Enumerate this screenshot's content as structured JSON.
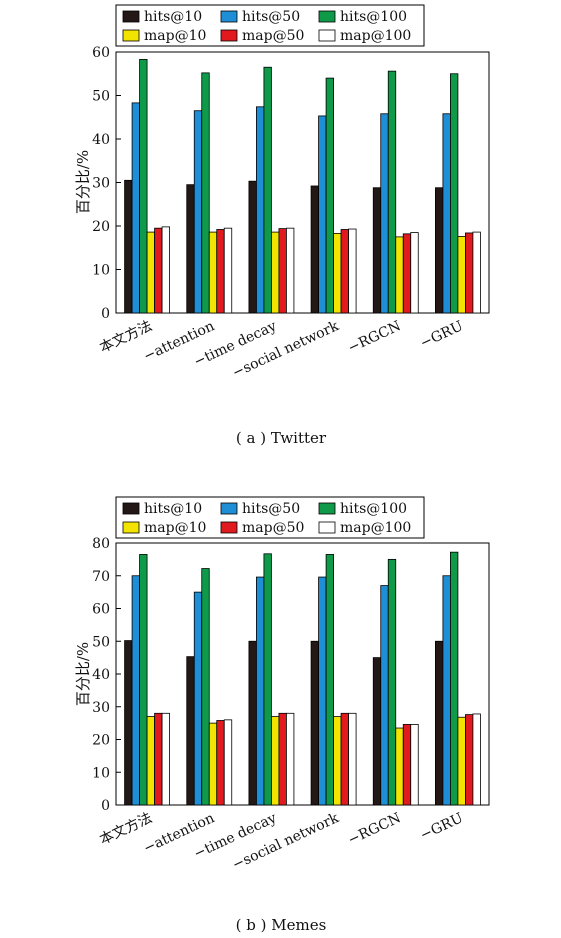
{
  "series_style": [
    {
      "name": "hits@10",
      "color": "#231815"
    },
    {
      "name": "hits@50",
      "color": "#1e8fd6"
    },
    {
      "name": "hits@100",
      "color": "#0f9a4a"
    },
    {
      "name": "map@10",
      "color": "#f2e400"
    },
    {
      "name": "map@50",
      "color": "#e01a1f"
    },
    {
      "name": "map@100",
      "color": "#ffffff"
    }
  ],
  "chart_data": [
    {
      "type": "bar",
      "caption": "( a ) Twitter",
      "ylabel": "百分比/%",
      "xlabel": "",
      "ylim": [
        0,
        60
      ],
      "yticks": [
        "0",
        "10",
        "20",
        "30",
        "40",
        "50",
        "60"
      ],
      "grid": false,
      "legend_position": "top",
      "categories": [
        "本文方法",
        "−attention",
        "−time decay",
        "−social network",
        "−RGCN",
        "−GRU"
      ],
      "series": [
        {
          "name": "hits@10",
          "values": [
            30.5,
            29.5,
            30.3,
            29.2,
            28.8,
            28.8
          ]
        },
        {
          "name": "hits@50",
          "values": [
            48.3,
            46.5,
            47.4,
            45.3,
            45.8,
            45.8
          ]
        },
        {
          "name": "hits@100",
          "values": [
            58.3,
            55.2,
            56.5,
            54.0,
            55.6,
            55.0
          ]
        },
        {
          "name": "map@10",
          "values": [
            18.6,
            18.6,
            18.6,
            18.3,
            17.5,
            17.6
          ]
        },
        {
          "name": "map@50",
          "values": [
            19.5,
            19.2,
            19.4,
            19.2,
            18.2,
            18.4
          ]
        },
        {
          "name": "map@100",
          "values": [
            19.8,
            19.5,
            19.5,
            19.3,
            18.5,
            18.6
          ]
        }
      ]
    },
    {
      "type": "bar",
      "caption": "( b ) Memes",
      "ylabel": "百分比/%",
      "xlabel": "",
      "ylim": [
        0,
        80
      ],
      "yticks": [
        "0",
        "10",
        "20",
        "30",
        "40",
        "50",
        "60",
        "70",
        "80"
      ],
      "grid": false,
      "legend_position": "top",
      "categories": [
        "本文方法",
        "−attention",
        "−time decay",
        "−social network",
        "−RGCN",
        "−GRU"
      ],
      "series": [
        {
          "name": "hits@10",
          "values": [
            50.2,
            45.3,
            50.0,
            50.0,
            45.0,
            50.0
          ]
        },
        {
          "name": "hits@50",
          "values": [
            70.0,
            65.0,
            69.6,
            69.6,
            67.0,
            70.0
          ]
        },
        {
          "name": "hits@100",
          "values": [
            76.5,
            72.2,
            76.7,
            76.5,
            75.0,
            77.2
          ]
        },
        {
          "name": "map@10",
          "values": [
            27.0,
            25.0,
            27.0,
            27.0,
            23.5,
            26.8
          ]
        },
        {
          "name": "map@50",
          "values": [
            28.0,
            25.8,
            28.0,
            28.0,
            24.6,
            27.6
          ]
        },
        {
          "name": "map@100",
          "values": [
            28.0,
            26.0,
            28.0,
            28.0,
            24.6,
            27.8
          ]
        }
      ]
    }
  ]
}
